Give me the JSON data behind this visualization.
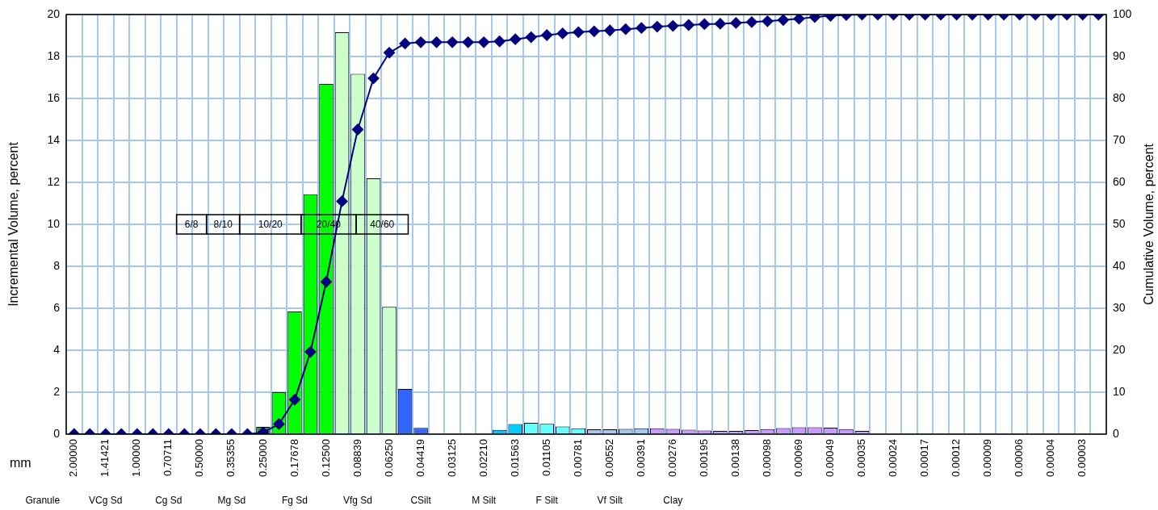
{
  "chart_data": {
    "type": "bar",
    "categories": [
      "2.00000",
      null,
      "1.41421",
      null,
      "1.00000",
      null,
      "0.70711",
      null,
      "0.50000",
      null,
      "0.35355",
      null,
      "0.25000",
      null,
      "0.17678",
      null,
      "0.12500",
      null,
      "0.08839",
      null,
      "0.06250",
      null,
      "0.04419",
      null,
      "0.03125",
      null,
      "0.02210",
      null,
      "0.01563",
      null,
      "0.01105",
      null,
      "0.00781",
      null,
      "0.00552",
      null,
      "0.00391",
      null,
      "0.00276",
      null,
      "0.00195",
      null,
      "0.00138",
      null,
      "0.00098",
      null,
      "0.00069",
      null,
      "0.00049",
      null,
      "0.00035",
      null,
      "0.00024",
      null,
      "0.00017",
      null,
      "0.00012",
      null,
      "0.00009",
      null,
      "0.00006",
      null,
      "0.00004",
      null,
      "0.00003",
      null
    ],
    "series": [
      {
        "values": [
          0,
          0,
          0,
          0,
          0,
          0,
          0,
          0,
          0,
          0,
          0,
          0,
          0.35,
          2.0,
          5.85,
          11.43,
          16.69,
          19.15,
          17.17,
          12.19,
          6.07,
          2.15,
          0.3,
          0,
          0,
          0,
          0,
          0.2,
          0.48,
          0.54,
          0.49,
          0.37,
          0.28,
          0.23,
          0.23,
          0.25,
          0.28,
          0.28,
          0.25,
          0.21,
          0.17,
          0.15,
          0.15,
          0.19,
          0.24,
          0.29,
          0.33,
          0.33,
          0.31,
          0.24,
          0.15,
          0,
          0,
          0,
          0,
          0,
          0,
          0,
          0,
          0,
          0,
          0,
          0,
          0,
          0,
          0
        ],
        "colors": [
          "#339933",
          "#339933",
          "#339933",
          "#339933",
          "#339933",
          "#339933",
          "#339933",
          "#339933",
          "#339933",
          "#339933",
          "#339933",
          "#339933",
          "#339933",
          "#00ff00",
          "#00ff00",
          "#00ff00",
          "#00ff00",
          "#ccffcc",
          "#ccffcc",
          "#ccffcc",
          "#ccffcc",
          "#3366ff",
          "#3366ff",
          "#3366ff",
          "#3366ff",
          "#3366ff",
          "#3366ff",
          "#00ccff",
          "#00ccff",
          "#66ffff",
          "#66ffff",
          "#66ffff",
          "#66ffff",
          "#a6c8f0",
          "#a6c8f0",
          "#a6c8f0",
          "#a6c8f0",
          "#cc99ff",
          "#cc99ff",
          "#cc99ff",
          "#cc99ff",
          "#cc99ff",
          "#cc99ff",
          "#cc99ff",
          "#cc99ff",
          "#cc99ff",
          "#cc99ff",
          "#cc99ff",
          "#cc99ff",
          "#cc99ff",
          "#cc99ff",
          "#cc99ff",
          "#cc99ff",
          "#cc99ff",
          "#cc99ff",
          "#cc99ff",
          "#cc99ff",
          "#cc99ff",
          "#cc99ff",
          "#cc99ff",
          "#cc99ff",
          "#cc99ff",
          "#cc99ff",
          "#cc99ff",
          "#cc99ff",
          "#cc99ff"
        ]
      },
      {
        "type": "line",
        "axis": "y2",
        "color": "#000080",
        "values": [
          0,
          0,
          0,
          0,
          0,
          0,
          0,
          0,
          0,
          0,
          0,
          0,
          0.4,
          2.4,
          8.2,
          19.6,
          36.3,
          55.5,
          72.6,
          84.8,
          90.9,
          93.1,
          93.4,
          93.4,
          93.4,
          93.4,
          93.4,
          93.6,
          94.1,
          94.6,
          95.1,
          95.5,
          95.8,
          96.0,
          96.2,
          96.5,
          96.8,
          97.1,
          97.3,
          97.5,
          97.7,
          97.8,
          98.0,
          98.2,
          98.4,
          98.7,
          99.0,
          99.4,
          99.7,
          99.9,
          100,
          100,
          100,
          100,
          100,
          100,
          100,
          100,
          100,
          100,
          100,
          100,
          100,
          100,
          100,
          100
        ]
      }
    ],
    "xlabel": "mm",
    "ylabel": "Incremental Volume, percent",
    "y2label": "Cumulative Volume, percent",
    "ylim": [
      0,
      20
    ],
    "yticks": [
      0,
      2,
      4,
      6,
      8,
      10,
      12,
      14,
      16,
      18,
      20
    ],
    "y2lim": [
      0,
      100
    ],
    "y2ticks": [
      0,
      10,
      20,
      30,
      40,
      50,
      60,
      70,
      80,
      90,
      100
    ],
    "grid": true,
    "marker": "diamond",
    "line_style": "solid",
    "annotations": [
      "6/8",
      "8/10",
      "10/20",
      "20/40",
      "40/60",
      "Granule",
      "VCg Sd",
      "Cg Sd",
      "Mg Sd",
      "Fg Sd",
      "Vfg Sd",
      "CSilt",
      "M Silt",
      "F Silt",
      "Vf Silt",
      "Clay"
    ]
  }
}
